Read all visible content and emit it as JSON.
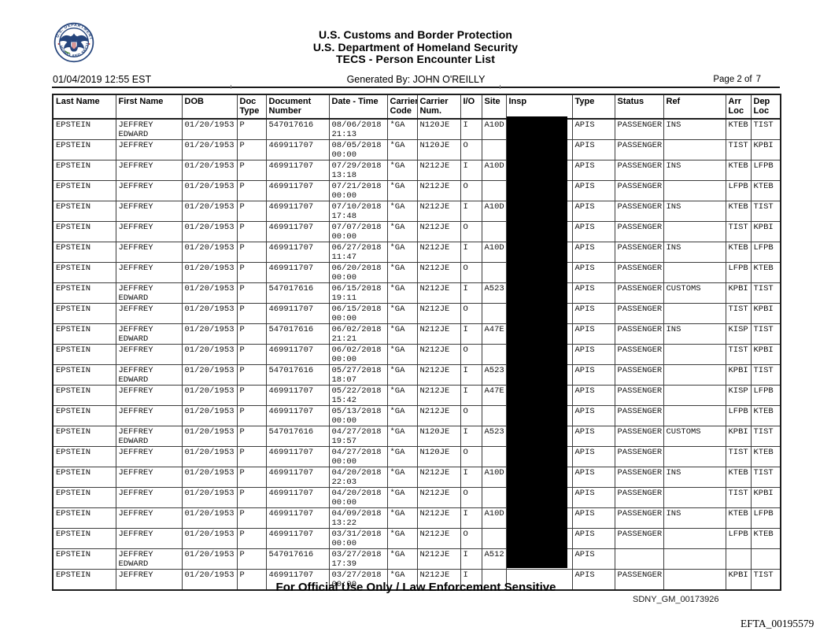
{
  "header": {
    "logo": "dhs-seal",
    "title_line1": "U.S. Customs and Border Protection",
    "title_line2": "U.S. Department of Homeland Security",
    "title_line3": "TECS - Person Encounter List",
    "timestamp": "01/04/2019 12:55 EST",
    "generated_by": "Generated By: JOHN O'REILLY",
    "page_label": "Page 2 of",
    "page_number": "7"
  },
  "table": {
    "columns": [
      "Last Name",
      "First Name",
      "DOB",
      "Doc\nType",
      "Document\nNumber",
      "Date - Time",
      "Carrier\nCode",
      "Carrier\nNum.",
      "I/O",
      "Site",
      "Insp",
      "Type",
      "Status",
      "Ref",
      "Arr\nLoc",
      "Dep\nLoc"
    ],
    "insp_column_redacted": true,
    "rows": [
      [
        "EPSTEIN",
        "JEFFREY\nEDWARD",
        "01/20/1953",
        "P",
        "547017616",
        "08/06/2018\n21:13",
        "*GA",
        "N120JE",
        "I",
        "A10D",
        "",
        "APIS",
        "PASSENGER",
        "INS",
        "KTEB",
        "TIST"
      ],
      [
        "EPSTEIN",
        "JEFFREY",
        "01/20/1953",
        "P",
        "469911707",
        "08/05/2018\n00:00",
        "*GA",
        "N120JE",
        "O",
        "",
        "",
        "APIS",
        "PASSENGER",
        "",
        "TIST",
        "KPBI"
      ],
      [
        "EPSTEIN",
        "JEFFREY",
        "01/20/1953",
        "P",
        "469911707",
        "07/29/2018\n13:18",
        "*GA",
        "N212JE",
        "I",
        "A10D",
        "",
        "APIS",
        "PASSENGER",
        "INS",
        "KTEB",
        "LFPB"
      ],
      [
        "EPSTEIN",
        "JEFFREY",
        "01/20/1953",
        "P",
        "469911707",
        "07/21/2018\n00:00",
        "*GA",
        "N212JE",
        "O",
        "",
        "",
        "APIS",
        "PASSENGER",
        "",
        "LFPB",
        "KTEB"
      ],
      [
        "EPSTEIN",
        "JEFFREY",
        "01/20/1953",
        "P",
        "469911707",
        "07/10/2018\n17:48",
        "*GA",
        "N212JE",
        "I",
        "A10D",
        "",
        "APIS",
        "PASSENGER",
        "INS",
        "KTEB",
        "TIST"
      ],
      [
        "EPSTEIN",
        "JEFFREY",
        "01/20/1953",
        "P",
        "469911707",
        "07/07/2018\n00:00",
        "*GA",
        "N212JE",
        "O",
        "",
        "",
        "APIS",
        "PASSENGER",
        "",
        "TIST",
        "KPBI"
      ],
      [
        "EPSTEIN",
        "JEFFREY",
        "01/20/1953",
        "P",
        "469911707",
        "06/27/2018\n11:47",
        "*GA",
        "N212JE",
        "I",
        "A10D",
        "",
        "APIS",
        "PASSENGER",
        "INS",
        "KTEB",
        "LFPB"
      ],
      [
        "EPSTEIN",
        "JEFFREY",
        "01/20/1953",
        "P",
        "469911707",
        "06/20/2018\n00:00",
        "*GA",
        "N212JE",
        "O",
        "",
        "",
        "APIS",
        "PASSENGER",
        "",
        "LFPB",
        "KTEB"
      ],
      [
        "EPSTEIN",
        "JEFFREY\nEDWARD",
        "01/20/1953",
        "P",
        "547017616",
        "06/15/2018\n19:11",
        "*GA",
        "N212JE",
        "I",
        "A523",
        "",
        "APIS",
        "PASSENGER",
        "CUSTOMS",
        "KPBI",
        "TIST"
      ],
      [
        "EPSTEIN",
        "JEFFREY",
        "01/20/1953",
        "P",
        "469911707",
        "06/15/2018\n00:00",
        "*GA",
        "N212JE",
        "O",
        "",
        "",
        "APIS",
        "PASSENGER",
        "",
        "TIST",
        "KPBI"
      ],
      [
        "EPSTEIN",
        "JEFFREY\nEDWARD",
        "01/20/1953",
        "P",
        "547017616",
        "06/02/2018\n21:21",
        "*GA",
        "N212JE",
        "I",
        "A47E",
        "",
        "APIS",
        "PASSENGER",
        "INS",
        "KISP",
        "TIST"
      ],
      [
        "EPSTEIN",
        "JEFFREY",
        "01/20/1953",
        "P",
        "469911707",
        "06/02/2018\n00:00",
        "*GA",
        "N212JE",
        "O",
        "",
        "",
        "APIS",
        "PASSENGER",
        "",
        "TIST",
        "KPBI"
      ],
      [
        "EPSTEIN",
        "JEFFREY\nEDWARD",
        "01/20/1953",
        "P",
        "547017616",
        "05/27/2018\n18:07",
        "*GA",
        "N212JE",
        "I",
        "A523",
        "",
        "APIS",
        "PASSENGER",
        "",
        "KPBI",
        "TIST"
      ],
      [
        "EPSTEIN",
        "JEFFREY",
        "01/20/1953",
        "P",
        "469911707",
        "05/22/2018\n15:42",
        "*GA",
        "N212JE",
        "I",
        "A47E",
        "",
        "APIS",
        "PASSENGER",
        "",
        "KISP",
        "LFPB"
      ],
      [
        "EPSTEIN",
        "JEFFREY",
        "01/20/1953",
        "P",
        "469911707",
        "05/13/2018\n00:00",
        "*GA",
        "N212JE",
        "O",
        "",
        "",
        "APIS",
        "PASSENGER",
        "",
        "LFPB",
        "KTEB"
      ],
      [
        "EPSTEIN",
        "JEFFREY\nEDWARD",
        "01/20/1953",
        "P",
        "547017616",
        "04/27/2018\n19:57",
        "*GA",
        "N120JE",
        "I",
        "A523",
        "",
        "APIS",
        "PASSENGER",
        "CUSTOMS",
        "KPBI",
        "TIST"
      ],
      [
        "EPSTEIN",
        "JEFFREY",
        "01/20/1953",
        "P",
        "469911707",
        "04/27/2018\n00:00",
        "*GA",
        "N120JE",
        "O",
        "",
        "",
        "APIS",
        "PASSENGER",
        "",
        "TIST",
        "KTEB"
      ],
      [
        "EPSTEIN",
        "JEFFREY",
        "01/20/1953",
        "P",
        "469911707",
        "04/20/2018\n22:03",
        "*GA",
        "N212JE",
        "I",
        "A10D",
        "",
        "APIS",
        "PASSENGER",
        "INS",
        "KTEB",
        "TIST"
      ],
      [
        "EPSTEIN",
        "JEFFREY",
        "01/20/1953",
        "P",
        "469911707",
        "04/20/2018\n00:00",
        "*GA",
        "N212JE",
        "O",
        "",
        "",
        "APIS",
        "PASSENGER",
        "",
        "TIST",
        "KPBI"
      ],
      [
        "EPSTEIN",
        "JEFFREY",
        "01/20/1953",
        "P",
        "469911707",
        "04/09/2018\n13:22",
        "*GA",
        "N212JE",
        "I",
        "A10D",
        "",
        "APIS",
        "PASSENGER",
        "INS",
        "KTEB",
        "LFPB"
      ],
      [
        "EPSTEIN",
        "JEFFREY",
        "01/20/1953",
        "P",
        "469911707",
        "03/31/2018\n00:00",
        "*GA",
        "N212JE",
        "O",
        "",
        "",
        "APIS",
        "PASSENGER",
        "",
        "LFPB",
        "KTEB"
      ],
      [
        "EPSTEIN",
        "JEFFREY\nEDWARD",
        "01/20/1953",
        "P",
        "547017616",
        "03/27/2018\n17:39",
        "*GA",
        "N212JE",
        "I",
        "A512",
        "",
        "APIS",
        "",
        "",
        "",
        ""
      ],
      [
        "EPSTEIN",
        "JEFFREY",
        "01/20/1953",
        "P",
        "469911707",
        "03/27/2018\n00:00",
        "*GA",
        "N212JE",
        "I",
        "",
        "",
        "APIS",
        "PASSENGER",
        "",
        "KPBI",
        "TIST"
      ]
    ]
  },
  "footer": {
    "notice": "For Official Use Only / Law Enforcement Sensitive",
    "bates_number": "SDNY_GM_00173926",
    "exhibit_number": "EFTA_00195579"
  },
  "colors": {
    "seal_navy": "#26457c",
    "seal_red": "#b03030",
    "seal_green": "#4c8c3f",
    "redaction_black": "#000000"
  }
}
